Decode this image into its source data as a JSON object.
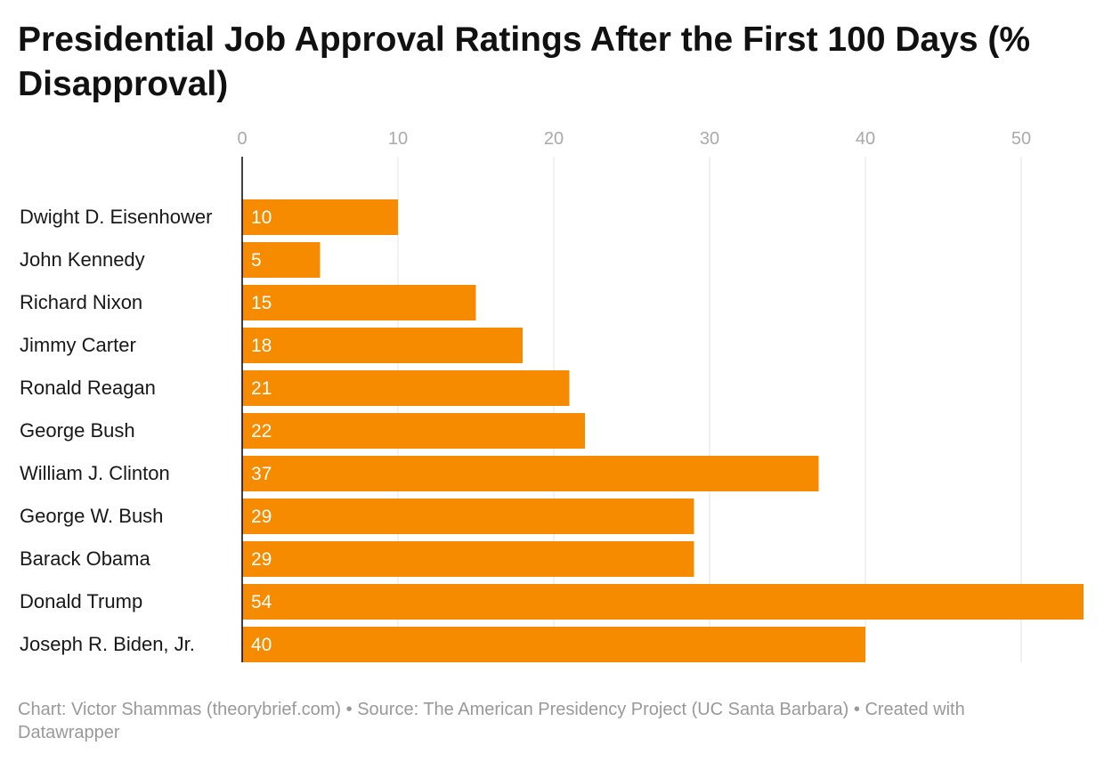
{
  "title": "Presidential Job Approval Ratings After the First 100 Days (% Disapproval)",
  "chart_data": {
    "type": "bar",
    "orientation": "horizontal",
    "title": "Presidential Job Approval Ratings After the First 100 Days (% Disapproval)",
    "xlabel": "",
    "ylabel": "",
    "xlim": [
      0,
      54
    ],
    "ticks": [
      0,
      10,
      20,
      30,
      40,
      50
    ],
    "tick_labels": [
      "0",
      "10",
      "20",
      "30",
      "40",
      "50"
    ],
    "grid": true,
    "axis_position": "top",
    "categories": [
      "Dwight D. Eisenhower",
      "John Kennedy",
      "Richard Nixon",
      "Jimmy Carter",
      "Ronald Reagan",
      "George Bush",
      "William J. Clinton",
      "George W. Bush",
      "Barack Obama",
      "Donald Trump",
      "Joseph R. Biden, Jr."
    ],
    "values": [
      10,
      5,
      15,
      18,
      21,
      22,
      37,
      29,
      29,
      54,
      40
    ],
    "value_labels": [
      "10",
      "5",
      "15",
      "18",
      "21",
      "22",
      "37",
      "29",
      "29",
      "54",
      "40"
    ],
    "bar_color": "#f68b00",
    "grid_color": "#e4e4e4",
    "tick_label_color": "#aaaaaa",
    "label_color": "#181818",
    "value_label_color": "#ffffff"
  },
  "footer": {
    "credit": "Chart: Victor Shammas (theorybrief.com)",
    "source": "Source: The American Presidency Project (UC Santa Barbara)",
    "created": "Created with Datawrapper",
    "separator": " • "
  }
}
